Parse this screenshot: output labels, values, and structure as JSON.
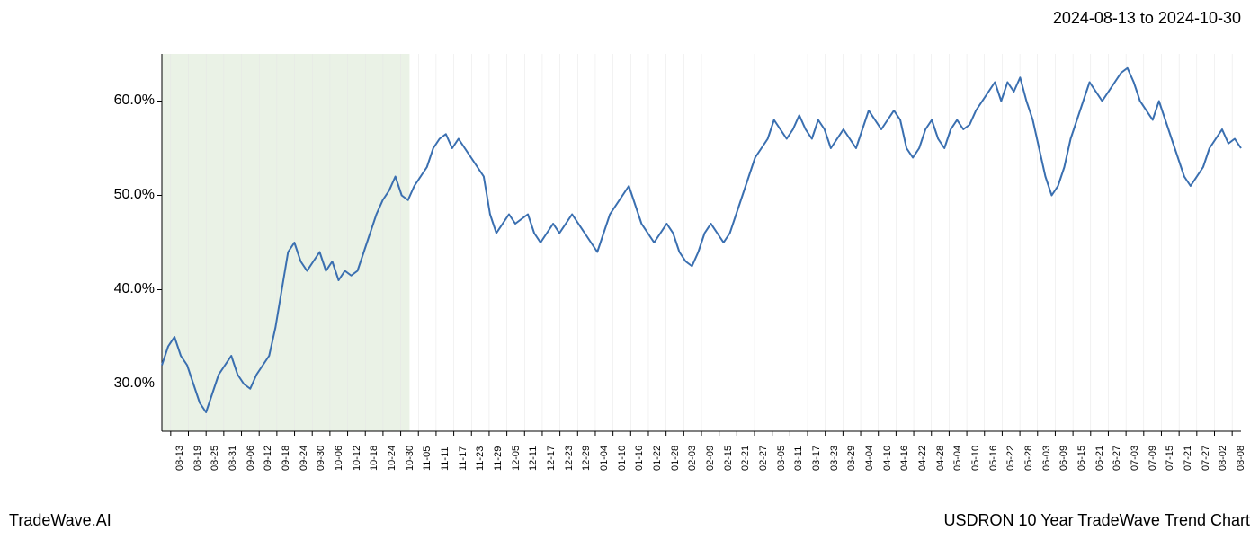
{
  "header": {
    "date_range": "2024-08-13 to 2024-10-30"
  },
  "footer": {
    "left": "TradeWave.AI",
    "right": "USDRON 10 Year TradeWave Trend Chart"
  },
  "chart": {
    "type": "line",
    "background_color": "#ffffff",
    "highlight_region": {
      "start_index": 0,
      "end_index": 13,
      "fill_color": "#dce9d5",
      "opacity": 0.6
    },
    "y_axis": {
      "min": 25,
      "max": 65,
      "ticks": [
        30,
        40,
        50,
        60
      ],
      "tick_labels": [
        "30.0%",
        "40.0%",
        "50.0%",
        "60.0%"
      ],
      "label_fontsize": 16,
      "label_color": "#000000"
    },
    "x_axis": {
      "labels": [
        "08-13",
        "08-19",
        "08-25",
        "08-31",
        "09-06",
        "09-12",
        "09-18",
        "09-24",
        "09-30",
        "10-06",
        "10-12",
        "10-18",
        "10-24",
        "10-30",
        "11-05",
        "11-11",
        "11-17",
        "11-23",
        "11-29",
        "12-05",
        "12-11",
        "12-17",
        "12-23",
        "12-29",
        "01-04",
        "01-10",
        "01-16",
        "01-22",
        "01-28",
        "02-03",
        "02-09",
        "02-15",
        "02-21",
        "02-27",
        "03-05",
        "03-11",
        "03-17",
        "03-23",
        "03-29",
        "04-04",
        "04-10",
        "04-16",
        "04-22",
        "04-28",
        "05-04",
        "05-10",
        "05-16",
        "05-22",
        "05-28",
        "06-03",
        "06-09",
        "06-15",
        "06-21",
        "06-27",
        "07-03",
        "07-09",
        "07-15",
        "07-21",
        "07-27",
        "08-02",
        "08-08"
      ],
      "label_fontsize": 11,
      "label_color": "#000000",
      "rotation": -90
    },
    "gridlines": {
      "vertical": true,
      "horizontal": false,
      "color": "#e5e5e5",
      "width": 0.5
    },
    "axis_line": {
      "color": "#000000",
      "width": 1
    },
    "series": {
      "color": "#3a6fb0",
      "width": 2,
      "values": [
        32,
        34,
        35,
        33,
        32,
        30,
        28,
        27,
        29,
        31,
        32,
        33,
        31,
        30,
        29.5,
        31,
        32,
        33,
        36,
        40,
        44,
        45,
        43,
        42,
        43,
        44,
        42,
        43,
        41,
        42,
        41.5,
        42,
        44,
        46,
        48,
        49.5,
        50.5,
        52,
        50,
        49.5,
        51,
        52,
        53,
        55,
        56,
        56.5,
        55,
        56,
        55,
        54,
        53,
        52,
        48,
        46,
        47,
        48,
        47,
        47.5,
        48,
        46,
        45,
        46,
        47,
        46,
        47,
        48,
        47,
        46,
        45,
        44,
        46,
        48,
        49,
        50,
        51,
        49,
        47,
        46,
        45,
        46,
        47,
        46,
        44,
        43,
        42.5,
        44,
        46,
        47,
        46,
        45,
        46,
        48,
        50,
        52,
        54,
        55,
        56,
        58,
        57,
        56,
        57,
        58.5,
        57,
        56,
        58,
        57,
        55,
        56,
        57,
        56,
        55,
        57,
        59,
        58,
        57,
        58,
        59,
        58,
        55,
        54,
        55,
        57,
        58,
        56,
        55,
        57,
        58,
        57,
        57.5,
        59,
        60,
        61,
        62,
        60,
        62,
        61,
        62.5,
        60,
        58,
        55,
        52,
        50,
        51,
        53,
        56,
        58,
        60,
        62,
        61,
        60,
        61,
        62,
        63,
        63.5,
        62,
        60,
        59,
        58,
        60,
        58,
        56,
        54,
        52,
        51,
        52,
        53,
        55,
        56,
        57,
        55.5,
        56,
        55
      ]
    }
  }
}
